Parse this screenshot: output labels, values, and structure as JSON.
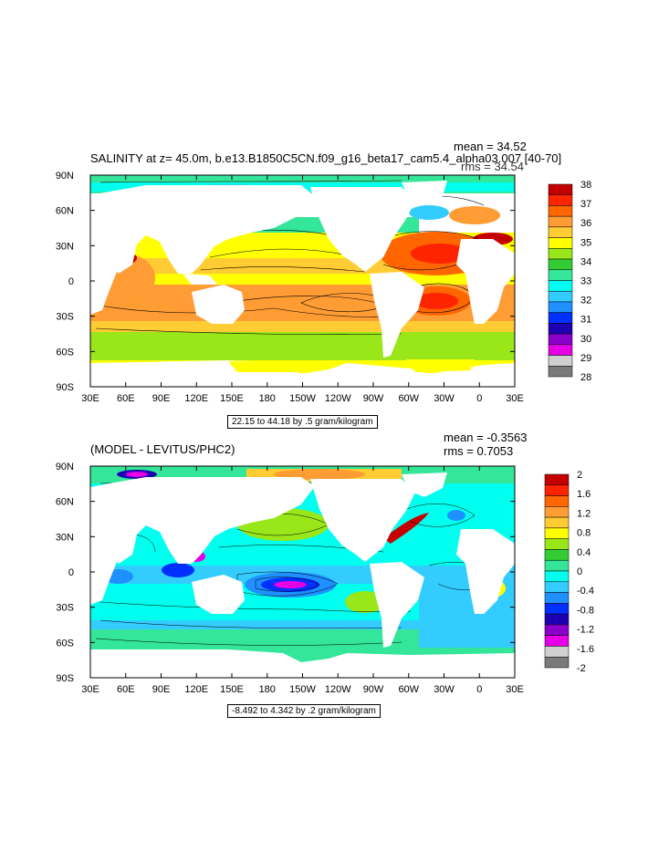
{
  "panels": [
    {
      "title": "SALINITY at z=  45.0m, b.e13.B1850C5CN.f09_g16_beta17_cam5.4_alpha03.007 [40-70]",
      "mean_text": "mean = 34.52",
      "rms_text": "rms = 34.54",
      "info_text": "22.15 to 44.18 by .5 gram/kilogram",
      "colorbar": {
        "labels": [
          "38",
          "37",
          "36",
          "35",
          "34",
          "33",
          "32",
          "31",
          "30",
          "29",
          "28"
        ],
        "colors": [
          "#c40000",
          "#ff2400",
          "#ff6600",
          "#ff9c33",
          "#ffcc33",
          "#ffff00",
          "#99e619",
          "#33cc33",
          "#33e699",
          "#00ffee",
          "#33ccff",
          "#1e90ff",
          "#0030ff",
          "#1e00b4",
          "#8c00cc",
          "#e600e6",
          "#d0d0d0",
          "#7a7a7a"
        ]
      }
    },
    {
      "title": "(MODEL - LEVITUS/PHC2)",
      "mean_text": "mean = -0.3563",
      "rms_text": "rms = 0.7053",
      "info_text": "-8.492 to 4.342 by .2 gram/kilogram",
      "colorbar": {
        "labels": [
          "2",
          "1.6",
          "1.2",
          "0.8",
          "0.4",
          "0",
          "-0.4",
          "-0.8",
          "-1.2",
          "-1.6",
          "-2"
        ],
        "colors": [
          "#c40000",
          "#ff2400",
          "#ff6600",
          "#ff9c33",
          "#ffcc33",
          "#ffff00",
          "#99e619",
          "#33cc33",
          "#33e699",
          "#00ffee",
          "#33ccff",
          "#1e90ff",
          "#0030ff",
          "#1e00b4",
          "#8c00cc",
          "#e600e6",
          "#d0d0d0",
          "#7a7a7a"
        ]
      }
    }
  ],
  "axes": {
    "x_ticks": [
      "30E",
      "60E",
      "90E",
      "120E",
      "150E",
      "180",
      "150W",
      "120W",
      "90W",
      "60W",
      "30W",
      "0",
      "30E"
    ],
    "y_ticks": [
      "90N",
      "60N",
      "30N",
      "0",
      "30S",
      "60S",
      "90S"
    ]
  },
  "chart_data": [
    {
      "type": "heatmap",
      "title": "SALINITY at z=  45.0m, b.e13.B1850C5CN.f09_g16_beta17_cam5.4_alpha03.007 [40-70]",
      "units": "gram/kilogram",
      "mean": 34.52,
      "rms": 34.54,
      "contour_min": 22.15,
      "contour_max": 44.18,
      "contour_interval": 0.5,
      "colorbar_levels": [
        28,
        29,
        30,
        31,
        32,
        33,
        34,
        35,
        36,
        37,
        38
      ],
      "x_range": [
        "30E",
        "30E"
      ],
      "y_range": [
        "90S",
        "90N"
      ]
    },
    {
      "type": "heatmap",
      "title": "(MODEL - LEVITUS/PHC2)",
      "units": "gram/kilogram",
      "mean": -0.3563,
      "rms": 0.7053,
      "contour_min": -8.492,
      "contour_max": 4.342,
      "contour_interval": 0.2,
      "colorbar_levels": [
        -2,
        -1.6,
        -1.2,
        -0.8,
        -0.4,
        0,
        0.4,
        0.8,
        1.2,
        1.6,
        2
      ],
      "x_range": [
        "30E",
        "30E"
      ],
      "y_range": [
        "90S",
        "90N"
      ]
    }
  ]
}
